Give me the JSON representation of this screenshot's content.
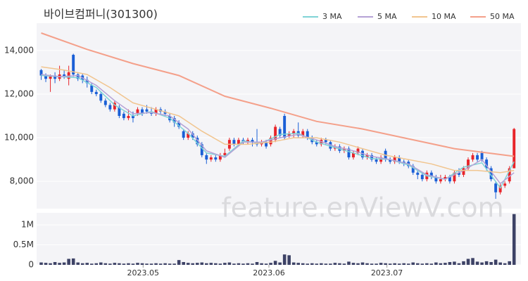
{
  "chart_data": [
    {
      "type": "candlestick",
      "title": "바이브컴퍼니(301300)",
      "up_color": "#e8242a",
      "down_color": "#1a5fd6",
      "xlim": [
        -1,
        104.5
      ],
      "ylim": [
        6750,
        15250
      ],
      "yticks": [
        {
          "value": 8000,
          "label": "8,000"
        },
        {
          "value": 10000,
          "label": "10,000"
        },
        {
          "value": 12000,
          "label": "12,000"
        },
        {
          "value": 14000,
          "label": "14,000"
        }
      ],
      "grid": true,
      "open": [
        13100,
        12850,
        12700,
        12850,
        12700,
        12900,
        12700,
        13800,
        12900,
        12850,
        12650,
        12400,
        12100,
        12000,
        11700,
        11500,
        11300,
        11400,
        11100,
        10900,
        11000,
        11100,
        11300,
        11300,
        11200,
        11100,
        11300,
        11200,
        11000,
        10900,
        10700,
        10300,
        10000,
        10200,
        10000,
        9700,
        9200,
        9000,
        9100,
        9000,
        9200,
        9500,
        9900,
        9700,
        9900,
        9800,
        9900,
        9800,
        9700,
        9800,
        9700,
        9900,
        10400,
        11000,
        10100,
        10200,
        10300,
        10100,
        10300,
        10000,
        9800,
        9700,
        9900,
        9800,
        9500,
        9600,
        9400,
        9500,
        9100,
        9300,
        9400,
        9100,
        9200,
        9000,
        8900,
        9400,
        9000,
        8900,
        9100,
        8900,
        8900,
        8700,
        8400,
        8300,
        8100,
        8400,
        8200,
        8000,
        8100,
        8200,
        8000,
        8400,
        8300,
        8600,
        9000,
        9200,
        9300,
        9000,
        8600,
        7900,
        7500,
        7800,
        8000,
        8600
      ],
      "high": [
        13150,
        12950,
        12900,
        13000,
        13300,
        13100,
        13300,
        13850,
        13000,
        12950,
        12800,
        12500,
        12200,
        12100,
        11800,
        11600,
        11700,
        11500,
        11200,
        11300,
        11200,
        11400,
        11400,
        11500,
        11400,
        11400,
        11400,
        11300,
        11100,
        11000,
        10800,
        10400,
        10300,
        10300,
        10100,
        9800,
        9300,
        9200,
        9200,
        9300,
        9500,
        10000,
        10000,
        10000,
        10000,
        10000,
        10000,
        10400,
        9900,
        9900,
        10100,
        10600,
        10500,
        11100,
        10300,
        10400,
        10700,
        10400,
        10400,
        10100,
        9900,
        10000,
        10000,
        9900,
        9700,
        9700,
        9600,
        9600,
        9400,
        9600,
        9500,
        9300,
        9300,
        9100,
        9200,
        9500,
        9100,
        9200,
        9200,
        9000,
        9000,
        8800,
        8500,
        8400,
        8500,
        8500,
        8300,
        8300,
        8300,
        8300,
        8500,
        8600,
        8700,
        9100,
        9300,
        9300,
        9400,
        9100,
        8700,
        8000,
        7900,
        8000,
        8700,
        10450
      ],
      "low": [
        12650,
        12550,
        12100,
        12500,
        12600,
        12700,
        12400,
        12800,
        12600,
        12500,
        12300,
        12000,
        11900,
        11600,
        11400,
        11200,
        11200,
        10900,
        10800,
        10800,
        10700,
        11000,
        11000,
        11100,
        11000,
        11000,
        11100,
        11000,
        10700,
        10500,
        10400,
        9900,
        9900,
        9900,
        9600,
        9100,
        8800,
        8900,
        8900,
        8900,
        9100,
        9400,
        9600,
        9600,
        9700,
        9700,
        9600,
        9600,
        9600,
        9500,
        9600,
        9800,
        10000,
        9900,
        10000,
        10000,
        10000,
        10000,
        9900,
        9700,
        9600,
        9600,
        9700,
        9400,
        9400,
        9300,
        9300,
        9000,
        9000,
        9200,
        9000,
        9000,
        8900,
        8800,
        8800,
        8900,
        8800,
        8800,
        8800,
        8700,
        8600,
        8300,
        8100,
        8000,
        8000,
        8100,
        7900,
        7900,
        8000,
        7900,
        7900,
        8200,
        8200,
        8500,
        8900,
        8900,
        8900,
        8500,
        8000,
        7200,
        7400,
        7700,
        7900,
        8600
      ],
      "close": [
        12850,
        12700,
        12850,
        12700,
        12900,
        12800,
        13000,
        12900,
        12700,
        12650,
        12500,
        12100,
        12000,
        11700,
        11500,
        11300,
        11600,
        11000,
        10900,
        11000,
        10900,
        11300,
        11100,
        11200,
        11100,
        11300,
        11200,
        11100,
        10800,
        10700,
        10500,
        10000,
        10200,
        10000,
        9700,
        9200,
        9000,
        9100,
        9000,
        9200,
        9300,
        9900,
        9700,
        9900,
        9800,
        9900,
        9800,
        9700,
        9800,
        9600,
        10000,
        10500,
        10100,
        10000,
        10200,
        10300,
        10100,
        10300,
        10000,
        9800,
        9700,
        9900,
        9800,
        9500,
        9600,
        9400,
        9500,
        9100,
        9300,
        9500,
        9100,
        9200,
        9000,
        8900,
        9100,
        9000,
        8900,
        9100,
        8900,
        8800,
        8700,
        8400,
        8300,
        8100,
        8400,
        8200,
        8000,
        8100,
        8200,
        8000,
        8400,
        8300,
        8600,
        9000,
        9200,
        9000,
        9000,
        8600,
        8100,
        7500,
        7800,
        7900,
        8600,
        10400
      ],
      "series": [
        {
          "name": "3 MA",
          "color": "#7fd3d6",
          "x": [
            0,
            4,
            8,
            12,
            16,
            20,
            24,
            28,
            32,
            36,
            40,
            44,
            48,
            52,
            56,
            60,
            64,
            68,
            72,
            76,
            80,
            84,
            88,
            92,
            96,
            100,
            103
          ],
          "values": [
            12850,
            12800,
            12750,
            12300,
            11500,
            11000,
            11200,
            10900,
            10200,
            9300,
            9150,
            9850,
            9750,
            10150,
            10200,
            9800,
            9550,
            9300,
            9050,
            9000,
            8750,
            8250,
            8100,
            8650,
            8850,
            7700,
            8900
          ]
        },
        {
          "name": "5 MA",
          "color": "#b5a2d6",
          "x": [
            0,
            4,
            8,
            12,
            16,
            20,
            24,
            28,
            32,
            36,
            40,
            44,
            48,
            52,
            56,
            60,
            64,
            68,
            72,
            76,
            80,
            84,
            88,
            92,
            96,
            100,
            103
          ],
          "values": [
            12900,
            12800,
            12850,
            12400,
            11700,
            11100,
            11150,
            11000,
            10400,
            9400,
            9100,
            9800,
            9800,
            10000,
            10150,
            9900,
            9600,
            9400,
            9150,
            9000,
            8800,
            8300,
            8100,
            8500,
            9000,
            7900,
            8400
          ]
        },
        {
          "name": "10 MA",
          "color": "#f1c58f",
          "x": [
            0,
            5,
            10,
            15,
            20,
            25,
            30,
            35,
            40,
            45,
            50,
            55,
            60,
            65,
            70,
            75,
            80,
            85,
            90,
            95,
            100,
            103
          ],
          "values": [
            13250,
            13100,
            12900,
            12300,
            11600,
            11300,
            11000,
            10300,
            9700,
            9700,
            9800,
            10000,
            10000,
            9800,
            9500,
            9200,
            9000,
            8800,
            8500,
            8500,
            8400,
            8500
          ]
        },
        {
          "name": "50 MA",
          "color": "#f4a08a",
          "x": [
            0,
            10,
            20,
            30,
            40,
            50,
            60,
            70,
            80,
            90,
            103
          ],
          "values": [
            14800,
            14050,
            13400,
            12850,
            11900,
            11350,
            10750,
            10400,
            9950,
            9500,
            9150
          ]
        }
      ]
    },
    {
      "type": "bar",
      "color": "#3d4266",
      "xlim": [
        -1,
        104.5
      ],
      "ylim": [
        0,
        1300000
      ],
      "yticks": [
        0,
        {
          "value": 500000,
          "label": "0.5M"
        },
        {
          "value": 1000000,
          "label": "1M"
        }
      ],
      "xticks": [
        {
          "value": 22.2,
          "label": "2023.05"
        },
        {
          "value": 49.6,
          "label": "2023.06"
        },
        {
          "value": 75.3,
          "label": "2023.07"
        }
      ],
      "values": [
        60000,
        50000,
        40000,
        70000,
        50000,
        60000,
        150000,
        160000,
        60000,
        40000,
        50000,
        30000,
        40000,
        60000,
        40000,
        30000,
        50000,
        40000,
        30000,
        40000,
        30000,
        50000,
        40000,
        30000,
        30000,
        40000,
        30000,
        40000,
        30000,
        30000,
        120000,
        70000,
        50000,
        40000,
        50000,
        60000,
        40000,
        50000,
        40000,
        30000,
        50000,
        60000,
        30000,
        40000,
        30000,
        40000,
        30000,
        70000,
        40000,
        30000,
        50000,
        100000,
        60000,
        260000,
        240000,
        60000,
        50000,
        40000,
        30000,
        40000,
        30000,
        40000,
        30000,
        30000,
        50000,
        40000,
        30000,
        80000,
        50000,
        40000,
        60000,
        40000,
        30000,
        30000,
        50000,
        40000,
        30000,
        40000,
        30000,
        40000,
        30000,
        60000,
        40000,
        30000,
        40000,
        30000,
        60000,
        40000,
        50000,
        70000,
        80000,
        40000,
        90000,
        150000,
        170000,
        80000,
        60000,
        90000,
        70000,
        130000,
        60000,
        40000,
        90000,
        1270000
      ]
    }
  ],
  "watermark": "feature.enViewV.com"
}
